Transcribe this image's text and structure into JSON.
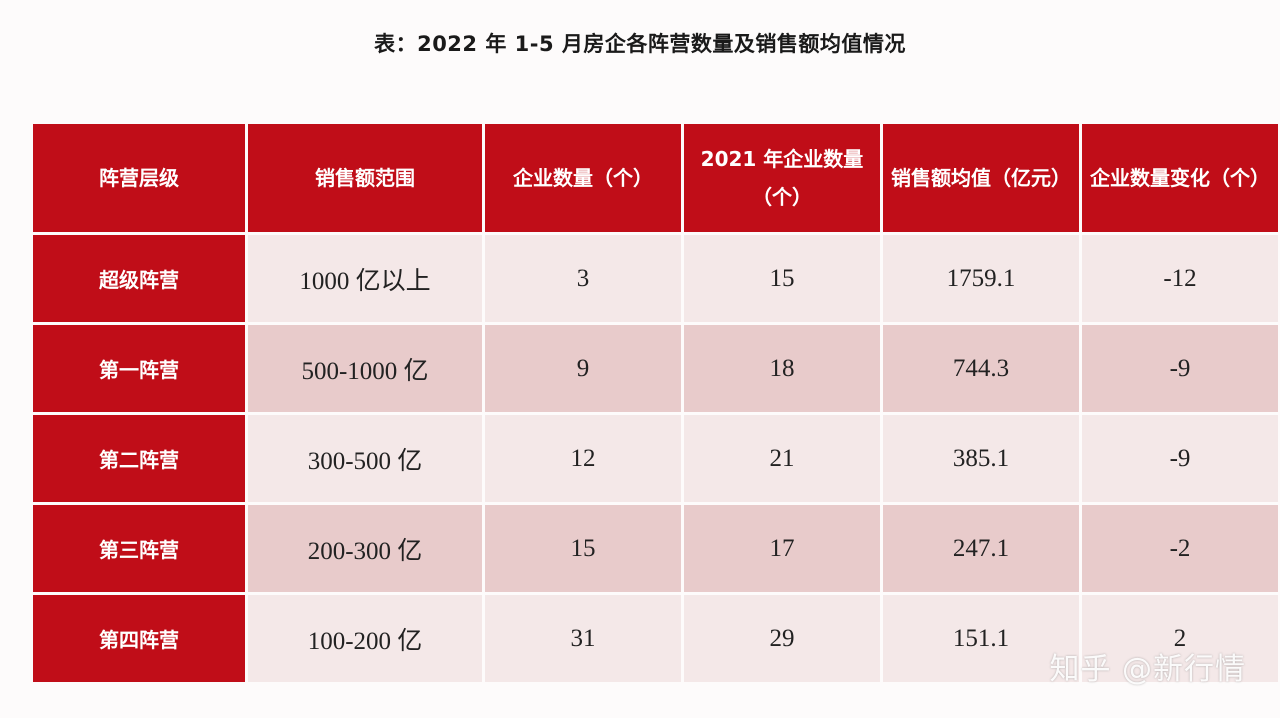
{
  "title": "表：2022 年 1-5 月房企各阵营数量及销售额均值情况",
  "table": {
    "headers": [
      "阵营层级",
      "销售额范围",
      "企业数量（个）",
      "2021 年企业数量（个）",
      "销售额均值（亿元）",
      "企业数量变化（个）"
    ],
    "rows": [
      {
        "tier": "超级阵营",
        "range": "1000 亿以上",
        "count": "3",
        "count_2021": "15",
        "avg_sales": "1759.1",
        "change": "-12"
      },
      {
        "tier": "第一阵营",
        "range": "500-1000 亿",
        "count": "9",
        "count_2021": "18",
        "avg_sales": "744.3",
        "change": "-9"
      },
      {
        "tier": "第二阵营",
        "range": "300-500 亿",
        "count": "12",
        "count_2021": "21",
        "avg_sales": "385.1",
        "change": "-9"
      },
      {
        "tier": "第三阵营",
        "range": "200-300 亿",
        "count": "15",
        "count_2021": "17",
        "avg_sales": "247.1",
        "change": "-2"
      },
      {
        "tier": "第四阵营",
        "range": "100-200 亿",
        "count": "31",
        "count_2021": "29",
        "avg_sales": "151.1",
        "change": "2"
      }
    ]
  },
  "watermark": "知乎 @新行情",
  "colors": {
    "header_red": "#c00d18",
    "row_light": "#f4e8e8",
    "row_dark": "#e8cbcb"
  }
}
